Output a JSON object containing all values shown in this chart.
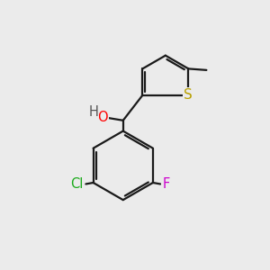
{
  "background_color": "#ebebeb",
  "bond_color": "#1a1a1a",
  "bond_width": 1.6,
  "atom_colors": {
    "O": "#ff0000",
    "S": "#b8a000",
    "Cl": "#1aaa1a",
    "F": "#cc00cc"
  },
  "font_size": 10.5
}
